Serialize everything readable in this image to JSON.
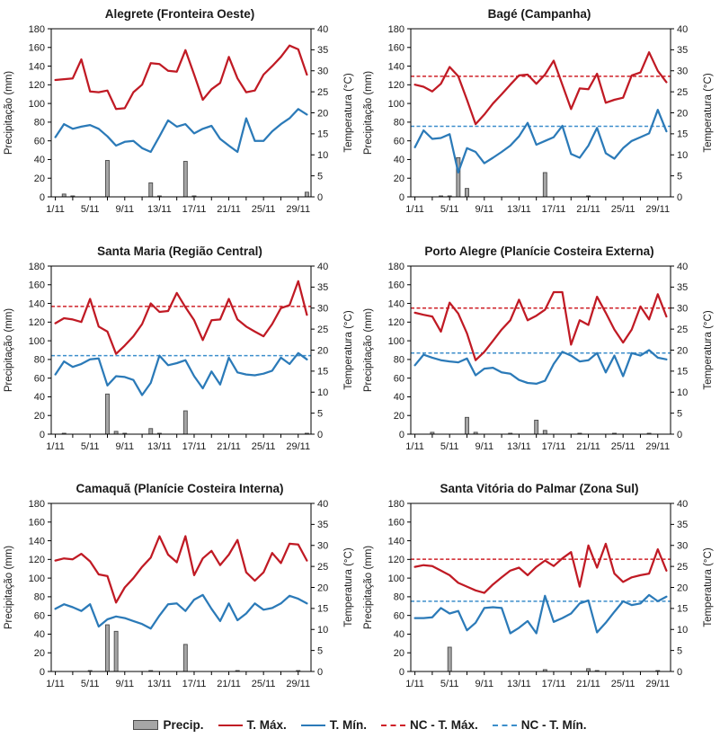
{
  "colors": {
    "tmax": "#c01a24",
    "tmin": "#2b7ab8",
    "nc_tmax": "#cf2128",
    "nc_tmin": "#3c8ecb",
    "bar_fill": "#a6a6a6",
    "bar_stroke": "#4a4a4a",
    "axis": "#000000",
    "text": "#1a1a1a"
  },
  "axes": {
    "y_left_label": "Precipitação (mm)",
    "y_right_label": "Temperatura (°C)",
    "y_left_range": [
      0,
      180
    ],
    "y_right_range": [
      0,
      40
    ],
    "y_left_ticks": [
      0,
      20,
      40,
      60,
      80,
      100,
      120,
      140,
      160,
      180
    ],
    "y_right_ticks": [
      0,
      5,
      10,
      15,
      20,
      25,
      30,
      35,
      40
    ],
    "x_tick_days": [
      1,
      5,
      9,
      13,
      17,
      21,
      25,
      29
    ],
    "x_tick_labels": [
      "1/11",
      "5/11",
      "9/11",
      "13/11",
      "17/11",
      "21/11",
      "25/11",
      "29/11"
    ],
    "n_days": 30,
    "x_start": "1/11",
    "x_end": "30/11"
  },
  "legend": {
    "items": [
      {
        "label": "Precip.",
        "type": "bar"
      },
      {
        "label": "T. Máx.",
        "type": "line-tmax"
      },
      {
        "label": "T. Mín.",
        "type": "line-tmin"
      },
      {
        "label": "NC - T. Máx.",
        "type": "dash-tmax"
      },
      {
        "label": "NC - T. Mín.",
        "type": "dash-tmin"
      }
    ]
  },
  "chart_data": [
    {
      "title": "Alegrete (Fronteira Oeste)",
      "type": "bar+line",
      "precip_mm": [
        0,
        3,
        1,
        0,
        0,
        0,
        39,
        0,
        0,
        0,
        0,
        15,
        1,
        0,
        0,
        38,
        1,
        0,
        0,
        0,
        0,
        0,
        0,
        0,
        0,
        0,
        0,
        0,
        0,
        5
      ],
      "tmax_c": [
        27.8,
        28.0,
        28.2,
        32.7,
        25.1,
        24.9,
        25.3,
        20.9,
        21.1,
        24.9,
        26.7,
        31.8,
        31.6,
        30.0,
        29.8,
        34.9,
        29.1,
        23.1,
        25.6,
        27.1,
        33.3,
        28.2,
        24.9,
        25.3,
        29.1,
        31.1,
        33.3,
        36.0,
        35.1,
        29.1
      ],
      "tmin_c": [
        14.2,
        17.3,
        16.2,
        16.7,
        17.1,
        16.2,
        14.4,
        12.2,
        13.1,
        13.3,
        11.6,
        10.7,
        14.4,
        18.2,
        16.7,
        17.3,
        15.1,
        16.2,
        16.9,
        13.8,
        12.2,
        10.7,
        18.7,
        13.3,
        13.3,
        15.6,
        17.3,
        18.7,
        20.9,
        19.6
      ],
      "nc_tmax_c": null,
      "nc_tmin_c": null
    },
    {
      "title": "Bagé (Campanha)",
      "type": "bar+line",
      "precip_mm": [
        0,
        0,
        0,
        1,
        1,
        42,
        9,
        0,
        0,
        0,
        0,
        0,
        0,
        0,
        0,
        26,
        0,
        0,
        0,
        0,
        1,
        0,
        0,
        0,
        0,
        0,
        0,
        0,
        0,
        0
      ],
      "tmax_c": [
        26.7,
        26.2,
        25.1,
        26.9,
        30.9,
        28.7,
        23.1,
        17.3,
        19.6,
        22.2,
        24.4,
        26.7,
        28.9,
        29.1,
        26.9,
        29.1,
        32.4,
        26.7,
        20.9,
        25.8,
        25.6,
        29.3,
        22.4,
        23.1,
        23.6,
        28.9,
        29.6,
        34.4,
        30.0,
        27.3
      ],
      "tmin_c": [
        11.8,
        15.8,
        13.8,
        14.0,
        14.9,
        5.8,
        11.6,
        10.7,
        8.0,
        9.3,
        10.7,
        12.2,
        14.4,
        17.6,
        12.4,
        13.3,
        14.2,
        16.9,
        10.2,
        9.3,
        12.2,
        16.4,
        10.4,
        9.1,
        11.6,
        13.3,
        14.2,
        15.1,
        20.7,
        15.6
      ],
      "nc_tmax_c": 28.7,
      "nc_tmin_c": 16.8
    },
    {
      "title": "Santa Maria (Região Central)",
      "type": "bar+line",
      "precip_mm": [
        0,
        1,
        0,
        0,
        0,
        0,
        43,
        3,
        1,
        0,
        0,
        6,
        1,
        0,
        0,
        25,
        0,
        0,
        0,
        0,
        0,
        0,
        0,
        0,
        0,
        0,
        0,
        0,
        0,
        1
      ],
      "tmax_c": [
        26.4,
        27.6,
        27.3,
        26.7,
        32.2,
        25.6,
        24.4,
        19.1,
        21.1,
        23.3,
        26.2,
        31.1,
        29.1,
        29.3,
        33.6,
        30.2,
        27.1,
        22.4,
        27.1,
        27.3,
        32.2,
        27.3,
        25.6,
        24.4,
        23.3,
        26.2,
        30.0,
        30.7,
        36.4,
        28.4
      ],
      "tmin_c": [
        14.2,
        17.3,
        16.0,
        16.7,
        17.8,
        18.0,
        11.6,
        13.8,
        13.6,
        12.9,
        9.3,
        12.2,
        18.7,
        16.4,
        16.9,
        17.6,
        13.8,
        10.9,
        14.9,
        11.8,
        18.2,
        14.7,
        14.2,
        14.0,
        14.4,
        15.1,
        18.2,
        16.7,
        19.3,
        17.8
      ],
      "nc_tmax_c": 30.4,
      "nc_tmin_c": 18.7
    },
    {
      "title": "Porto Alegre (Planície Costeira Externa)",
      "type": "bar+line",
      "precip_mm": [
        0,
        0,
        2,
        0,
        0,
        0,
        18,
        2,
        0,
        0,
        0,
        1,
        0,
        0,
        15,
        4,
        0,
        0,
        0,
        1,
        0,
        0,
        0,
        1,
        0,
        0,
        0,
        1,
        0,
        0
      ],
      "tmax_c": [
        28.9,
        28.4,
        28.0,
        24.4,
        31.3,
        28.7,
        24.0,
        17.6,
        19.6,
        22.2,
        24.9,
        27.1,
        32.0,
        27.1,
        28.2,
        29.6,
        33.8,
        33.8,
        21.3,
        27.1,
        26.0,
        32.7,
        28.9,
        24.9,
        21.8,
        24.9,
        30.4,
        27.3,
        33.3,
        28.0
      ],
      "tmin_c": [
        16.4,
        18.9,
        18.2,
        17.6,
        17.3,
        17.1,
        18.0,
        14.0,
        15.6,
        15.8,
        14.7,
        14.4,
        12.9,
        12.2,
        12.0,
        12.7,
        16.7,
        19.6,
        18.7,
        17.3,
        17.6,
        19.3,
        14.7,
        18.7,
        13.8,
        19.3,
        18.7,
        20.0,
        18.2,
        17.8
      ],
      "nc_tmax_c": 30.0,
      "nc_tmin_c": 19.3
    },
    {
      "title": "Camaquã (Planície Costeira Interna)",
      "type": "bar+line",
      "precip_mm": [
        0,
        0,
        0,
        0,
        1,
        0,
        50,
        43,
        0,
        0,
        0,
        1,
        0,
        0,
        0,
        29,
        0,
        0,
        0,
        0,
        0,
        1,
        0,
        0,
        0,
        0,
        0,
        0,
        1,
        0
      ],
      "tmax_c": [
        26.4,
        26.9,
        26.7,
        28.0,
        26.2,
        23.1,
        22.7,
        16.4,
        20.0,
        22.2,
        24.9,
        27.1,
        32.2,
        27.8,
        26.0,
        32.2,
        22.9,
        26.9,
        28.7,
        25.3,
        27.8,
        31.3,
        23.6,
        21.6,
        23.6,
        28.2,
        25.8,
        30.4,
        30.2,
        26.4
      ],
      "tmin_c": [
        14.9,
        16.0,
        15.3,
        14.4,
        16.0,
        10.7,
        12.4,
        13.1,
        12.7,
        12.0,
        11.3,
        10.2,
        13.3,
        16.0,
        16.2,
        14.4,
        17.1,
        18.2,
        14.9,
        12.0,
        16.2,
        12.2,
        13.8,
        16.2,
        14.7,
        15.1,
        16.2,
        18.0,
        17.3,
        16.2
      ],
      "nc_tmax_c": null,
      "nc_tmin_c": null
    },
    {
      "title": "Santa Vitória do Palmar (Zona Sul)",
      "type": "bar+line",
      "precip_mm": [
        0,
        0,
        0,
        0,
        26,
        0,
        0,
        0,
        0,
        0,
        0,
        0,
        0,
        0,
        0,
        2,
        0,
        0,
        0,
        0,
        3,
        1,
        0,
        0,
        0,
        0,
        0,
        0,
        1,
        0
      ],
      "tmax_c": [
        24.9,
        25.3,
        25.1,
        24.0,
        22.9,
        21.1,
        20.2,
        19.3,
        18.7,
        20.7,
        22.4,
        24.0,
        24.7,
        22.9,
        24.9,
        26.4,
        25.1,
        26.9,
        28.4,
        20.2,
        30.0,
        24.7,
        30.4,
        23.3,
        21.3,
        22.4,
        22.9,
        23.3,
        29.1,
        24.0
      ],
      "tmin_c": [
        12.7,
        12.7,
        12.9,
        15.1,
        13.8,
        14.4,
        9.8,
        11.6,
        15.1,
        15.3,
        15.1,
        9.1,
        10.4,
        12.0,
        9.1,
        18.0,
        11.8,
        12.7,
        13.8,
        16.2,
        16.9,
        9.3,
        11.6,
        14.2,
        16.7,
        15.8,
        16.2,
        18.2,
        16.7,
        17.8
      ],
      "nc_tmax_c": 26.7,
      "nc_tmin_c": 16.7
    }
  ]
}
